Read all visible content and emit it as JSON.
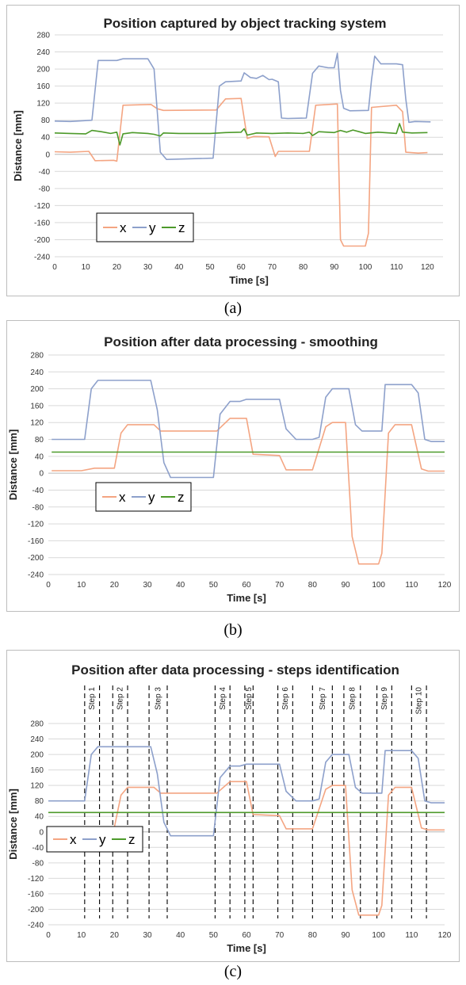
{
  "colors": {
    "x": "#f4a582",
    "y": "#8da0cb",
    "z": "#4d9a2a",
    "grid": "#d9d9d9",
    "step": "#000000"
  },
  "chart_data": [
    {
      "type": "line",
      "title": "Position captured by object tracking system",
      "xlabel": "Time [s]",
      "ylabel": "Distance [mm]",
      "xlim": [
        0,
        125
      ],
      "ylim": [
        -240,
        280
      ],
      "xticks": [
        0,
        10,
        20,
        30,
        40,
        50,
        60,
        70,
        80,
        90,
        100,
        110,
        120
      ],
      "yticks": [
        280,
        240,
        200,
        160,
        120,
        80,
        40,
        0,
        -40,
        -80,
        -120,
        -160,
        -200,
        -240
      ],
      "grid": "horizontal",
      "legend": "bottom-left",
      "caption": "(a)",
      "series": [
        {
          "name": "x",
          "points": [
            [
              0,
              6
            ],
            [
              5,
              5
            ],
            [
              11,
              7
            ],
            [
              13,
              -15
            ],
            [
              19,
              -14
            ],
            [
              20,
              -16
            ],
            [
              22,
              115
            ],
            [
              31,
              117
            ],
            [
              33,
              107
            ],
            [
              35,
              103
            ],
            [
              52,
              104
            ],
            [
              55,
              130
            ],
            [
              60,
              131
            ],
            [
              62,
              37
            ],
            [
              64,
              42
            ],
            [
              69,
              41
            ],
            [
              71,
              -5
            ],
            [
              72,
              7
            ],
            [
              82,
              7
            ],
            [
              84,
              115
            ],
            [
              91,
              118
            ],
            [
              92,
              -200
            ],
            [
              93,
              -215
            ],
            [
              100,
              -215
            ],
            [
              101,
              -185
            ],
            [
              102,
              110
            ],
            [
              110,
              115
            ],
            [
              112,
              100
            ],
            [
              113,
              5
            ],
            [
              117,
              3
            ],
            [
              120,
              4
            ]
          ]
        },
        {
          "name": "y",
          "points": [
            [
              0,
              78
            ],
            [
              5,
              77
            ],
            [
              12,
              80
            ],
            [
              14,
              220
            ],
            [
              20,
              220
            ],
            [
              22,
              224
            ],
            [
              30,
              224
            ],
            [
              32,
              200
            ],
            [
              34,
              5
            ],
            [
              36,
              -12
            ],
            [
              51,
              -9
            ],
            [
              53,
              160
            ],
            [
              55,
              170
            ],
            [
              60,
              172
            ],
            [
              61,
              191
            ],
            [
              63,
              180
            ],
            [
              65,
              178
            ],
            [
              67,
              185
            ],
            [
              69,
              175
            ],
            [
              70,
              176
            ],
            [
              72,
              170
            ],
            [
              73,
              85
            ],
            [
              75,
              84
            ],
            [
              81,
              85
            ],
            [
              83,
              190
            ],
            [
              85,
              207
            ],
            [
              88,
              203
            ],
            [
              90,
              203
            ],
            [
              91,
              237
            ],
            [
              92,
              150
            ],
            [
              93,
              108
            ],
            [
              95,
              102
            ],
            [
              101,
              103
            ],
            [
              102,
              175
            ],
            [
              103,
              230
            ],
            [
              105,
              212
            ],
            [
              110,
              212
            ],
            [
              112,
              210
            ],
            [
              113,
              130
            ],
            [
              114,
              75
            ],
            [
              116,
              77
            ],
            [
              121,
              76
            ]
          ]
        },
        {
          "name": "z",
          "points": [
            [
              0,
              50
            ],
            [
              5,
              49
            ],
            [
              10,
              48
            ],
            [
              12,
              56
            ],
            [
              15,
              53
            ],
            [
              18,
              49
            ],
            [
              20,
              52
            ],
            [
              21,
              22
            ],
            [
              22,
              48
            ],
            [
              25,
              51
            ],
            [
              30,
              49
            ],
            [
              32,
              47
            ],
            [
              34,
              43
            ],
            [
              35,
              50
            ],
            [
              40,
              49
            ],
            [
              50,
              49
            ],
            [
              55,
              51
            ],
            [
              60,
              52
            ],
            [
              61,
              60
            ],
            [
              62,
              45
            ],
            [
              65,
              50
            ],
            [
              70,
              49
            ],
            [
              75,
              50
            ],
            [
              80,
              49
            ],
            [
              82,
              52
            ],
            [
              83,
              44
            ],
            [
              85,
              53
            ],
            [
              90,
              51
            ],
            [
              92,
              56
            ],
            [
              94,
              52
            ],
            [
              96,
              57
            ],
            [
              98,
              53
            ],
            [
              100,
              49
            ],
            [
              104,
              52
            ],
            [
              108,
              50
            ],
            [
              110,
              49
            ],
            [
              111,
              72
            ],
            [
              112,
              52
            ],
            [
              115,
              50
            ],
            [
              120,
              51
            ]
          ]
        }
      ]
    },
    {
      "type": "line",
      "title": "Position after data processing - smoothing",
      "xlabel": "Time [s]",
      "ylabel": "Distance [mm]",
      "xlim": [
        0,
        120
      ],
      "ylim": [
        -240,
        280
      ],
      "xticks": [
        0,
        10,
        20,
        30,
        40,
        50,
        60,
        70,
        80,
        90,
        100,
        110,
        120
      ],
      "yticks": [
        280,
        240,
        200,
        160,
        120,
        80,
        40,
        0,
        -40,
        -80,
        -120,
        -160,
        -200,
        -240
      ],
      "grid": "horizontal",
      "legend": "bottom-left",
      "caption": "(b)",
      "series": [
        {
          "name": "x",
          "points": [
            [
              1,
              6
            ],
            [
              10,
              6
            ],
            [
              14,
              12
            ],
            [
              20,
              12
            ],
            [
              22,
              95
            ],
            [
              24,
              115
            ],
            [
              32,
              115
            ],
            [
              34,
              100
            ],
            [
              51,
              100
            ],
            [
              55,
              130
            ],
            [
              60,
              130
            ],
            [
              62,
              45
            ],
            [
              70,
              42
            ],
            [
              72,
              8
            ],
            [
              80,
              8
            ],
            [
              84,
              110
            ],
            [
              86,
              120
            ],
            [
              90,
              120
            ],
            [
              92,
              -150
            ],
            [
              94,
              -215
            ],
            [
              100,
              -215
            ],
            [
              101,
              -190
            ],
            [
              103,
              95
            ],
            [
              105,
              115
            ],
            [
              110,
              115
            ],
            [
              113,
              10
            ],
            [
              115,
              5
            ],
            [
              120,
              5
            ]
          ]
        },
        {
          "name": "y",
          "points": [
            [
              1,
              80
            ],
            [
              11,
              80
            ],
            [
              13,
              200
            ],
            [
              15,
              220
            ],
            [
              31,
              220
            ],
            [
              33,
              150
            ],
            [
              35,
              25
            ],
            [
              37,
              -10
            ],
            [
              50,
              -10
            ],
            [
              52,
              140
            ],
            [
              55,
              170
            ],
            [
              58,
              170
            ],
            [
              60,
              175
            ],
            [
              70,
              175
            ],
            [
              72,
              105
            ],
            [
              75,
              80
            ],
            [
              80,
              80
            ],
            [
              82,
              85
            ],
            [
              84,
              180
            ],
            [
              86,
              200
            ],
            [
              91,
              200
            ],
            [
              93,
              115
            ],
            [
              95,
              100
            ],
            [
              101,
              100
            ],
            [
              102,
              210
            ],
            [
              110,
              210
            ],
            [
              112,
              190
            ],
            [
              114,
              80
            ],
            [
              116,
              75
            ],
            [
              120,
              75
            ]
          ]
        },
        {
          "name": "z",
          "points": [
            [
              1,
              50
            ],
            [
              120,
              50
            ]
          ]
        }
      ]
    },
    {
      "type": "line",
      "title": "Position after data processing  - steps identification",
      "xlabel": "Time [s]",
      "ylabel": "Distance [mm]",
      "xlim": [
        0,
        120
      ],
      "ylim": [
        -240,
        280
      ],
      "xticks": [
        0,
        10,
        20,
        30,
        40,
        50,
        60,
        70,
        80,
        90,
        100,
        110,
        120
      ],
      "yticks": [
        280,
        240,
        200,
        160,
        120,
        80,
        40,
        0,
        -40,
        -80,
        -120,
        -160,
        -200,
        -240
      ],
      "grid": "horizontal",
      "legend": "left",
      "caption": "(c)",
      "steps": [
        {
          "label": "Step 1",
          "x": [
            11,
            15.5
          ]
        },
        {
          "label": "Step 2",
          "x": [
            19.5,
            24
          ]
        },
        {
          "label": "Step 3",
          "x": [
            30.5,
            36
          ]
        },
        {
          "label": "Step 4",
          "x": [
            50.5,
            55
          ]
        },
        {
          "label": "Step 5",
          "x": [
            59.5,
            62
          ]
        },
        {
          "label": "Step 6",
          "x": [
            69.5,
            74
          ]
        },
        {
          "label": "Step 7",
          "x": [
            80,
            86
          ]
        },
        {
          "label": "Step 8",
          "x": [
            89.5,
            94.5
          ]
        },
        {
          "label": "Step 9",
          "x": [
            99.5,
            104
          ]
        },
        {
          "label": "Step 10",
          "x": [
            110,
            114.5
          ]
        }
      ],
      "series": [
        {
          "name": "x",
          "points": [
            [
              0,
              6
            ],
            [
              10,
              6
            ],
            [
              14,
              12
            ],
            [
              20,
              12
            ],
            [
              22,
              95
            ],
            [
              24,
              115
            ],
            [
              32,
              115
            ],
            [
              34,
              100
            ],
            [
              51,
              100
            ],
            [
              55,
              130
            ],
            [
              60,
              130
            ],
            [
              62,
              45
            ],
            [
              70,
              42
            ],
            [
              72,
              8
            ],
            [
              80,
              8
            ],
            [
              84,
              110
            ],
            [
              86,
              120
            ],
            [
              90,
              120
            ],
            [
              92,
              -150
            ],
            [
              94,
              -215
            ],
            [
              100,
              -215
            ],
            [
              101,
              -190
            ],
            [
              103,
              95
            ],
            [
              105,
              115
            ],
            [
              110,
              115
            ],
            [
              113,
              10
            ],
            [
              115,
              5
            ],
            [
              120,
              5
            ]
          ]
        },
        {
          "name": "y",
          "points": [
            [
              0,
              80
            ],
            [
              11,
              80
            ],
            [
              13,
              200
            ],
            [
              15,
              220
            ],
            [
              31,
              220
            ],
            [
              33,
              150
            ],
            [
              35,
              25
            ],
            [
              37,
              -10
            ],
            [
              50,
              -10
            ],
            [
              52,
              140
            ],
            [
              55,
              170
            ],
            [
              58,
              170
            ],
            [
              60,
              175
            ],
            [
              70,
              175
            ],
            [
              72,
              105
            ],
            [
              75,
              80
            ],
            [
              80,
              80
            ],
            [
              82,
              85
            ],
            [
              84,
              180
            ],
            [
              86,
              200
            ],
            [
              91,
              200
            ],
            [
              93,
              115
            ],
            [
              95,
              100
            ],
            [
              101,
              100
            ],
            [
              102,
              210
            ],
            [
              110,
              210
            ],
            [
              112,
              190
            ],
            [
              114,
              80
            ],
            [
              116,
              75
            ],
            [
              120,
              75
            ]
          ]
        },
        {
          "name": "z",
          "points": [
            [
              0,
              50
            ],
            [
              120,
              50
            ]
          ]
        }
      ]
    }
  ]
}
